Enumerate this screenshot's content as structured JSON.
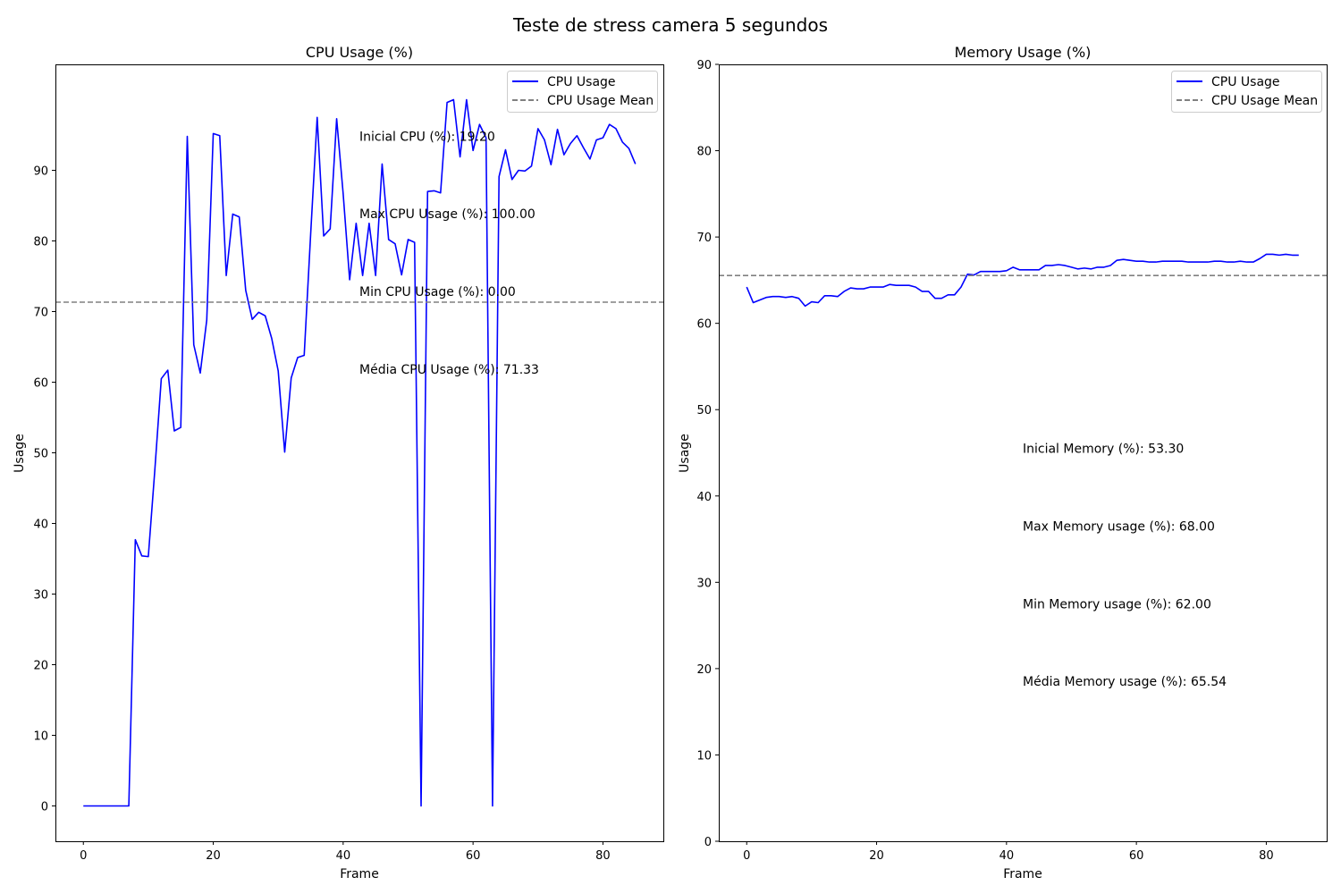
{
  "figure": {
    "title": "Teste de stress camera 5 segundos"
  },
  "chart_data": [
    {
      "type": "line",
      "title": "CPU Usage (%)",
      "xlabel": "Frame",
      "ylabel": "Usage",
      "xlim": [
        -4.3,
        89.3
      ],
      "ylim": [
        -5,
        105
      ],
      "xticks": [
        0,
        20,
        40,
        60,
        80
      ],
      "yticks": [
        0,
        10,
        20,
        30,
        40,
        50,
        60,
        70,
        80,
        90
      ],
      "grid": false,
      "legend_position": "upper right",
      "x": [
        0,
        1,
        2,
        3,
        4,
        5,
        6,
        7,
        8,
        9,
        10,
        11,
        12,
        13,
        14,
        15,
        16,
        17,
        18,
        19,
        20,
        21,
        22,
        23,
        24,
        25,
        26,
        27,
        28,
        29,
        30,
        31,
        32,
        33,
        34,
        35,
        36,
        37,
        38,
        39,
        40,
        41,
        42,
        43,
        44,
        45,
        46,
        47,
        48,
        49,
        50,
        51,
        52,
        53,
        54,
        55,
        56,
        57,
        58,
        59,
        60,
        61,
        62,
        63,
        64,
        65,
        66,
        67,
        68,
        69,
        70,
        71,
        72,
        73,
        74,
        75,
        76,
        77,
        78,
        79,
        80,
        81,
        82,
        83,
        84,
        85
      ],
      "series": [
        {
          "name": "CPU Usage",
          "color": "#0000ff",
          "style": "solid",
          "values": [
            0,
            0,
            0,
            0,
            0,
            0,
            0,
            0,
            37.7,
            35.4,
            35.3,
            47.5,
            60.5,
            61.7,
            53.1,
            53.6,
            94.8,
            65.3,
            61.3,
            68.8,
            95.2,
            94.9,
            75.1,
            83.8,
            83.4,
            73.0,
            68.9,
            69.9,
            69.4,
            66.2,
            61.6,
            50.1,
            60.6,
            63.5,
            63.8,
            81.0,
            97.5,
            80.7,
            81.7,
            97.3,
            86.7,
            74.5,
            82.5,
            75.1,
            82.5,
            75.1,
            90.9,
            80.2,
            79.6,
            75.2,
            80.2,
            79.8,
            0,
            87.0,
            87.1,
            86.8,
            99.6,
            100.0,
            91.9,
            100.0,
            92.8,
            96.5,
            94.6,
            0,
            89.1,
            92.9,
            88.7,
            90.0,
            89.9,
            90.6,
            95.9,
            94.3,
            90.8,
            95.8,
            92.2,
            93.8,
            94.9,
            93.2,
            91.6,
            94.3,
            94.6,
            96.5,
            95.9,
            94.0,
            93.1,
            90.9
          ]
        },
        {
          "name": "CPU Usage Mean",
          "color": "#808080",
          "style": "dashed",
          "constant": 71.33
        }
      ],
      "annotations": [
        {
          "text": "Inicial CPU (%): 19.20",
          "x": 42.5,
          "y": 94.2
        },
        {
          "text": "Max CPU Usage (%): 100.00",
          "x": 42.5,
          "y": 83.2
        },
        {
          "text": "Min CPU Usage (%): 0.00",
          "x": 42.5,
          "y": 72.2
        },
        {
          "text": "Média CPU Usage (%): 71.33",
          "x": 42.5,
          "y": 61.2
        }
      ]
    },
    {
      "type": "line",
      "title": "Memory Usage (%)",
      "xlabel": "Frame",
      "ylabel": "Usage",
      "xlim": [
        -4.3,
        89.3
      ],
      "ylim": [
        0,
        90
      ],
      "xticks": [
        0,
        20,
        40,
        60,
        80
      ],
      "yticks": [
        0,
        10,
        20,
        30,
        40,
        50,
        60,
        70,
        80,
        90
      ],
      "grid": false,
      "legend_position": "upper right",
      "x": [
        0,
        1,
        2,
        3,
        4,
        5,
        6,
        7,
        8,
        9,
        10,
        11,
        12,
        13,
        14,
        15,
        16,
        17,
        18,
        19,
        20,
        21,
        22,
        23,
        24,
        25,
        26,
        27,
        28,
        29,
        30,
        31,
        32,
        33,
        34,
        35,
        36,
        37,
        38,
        39,
        40,
        41,
        42,
        43,
        44,
        45,
        46,
        47,
        48,
        49,
        50,
        51,
        52,
        53,
        54,
        55,
        56,
        57,
        58,
        59,
        60,
        61,
        62,
        63,
        64,
        65,
        66,
        67,
        68,
        69,
        70,
        71,
        72,
        73,
        74,
        75,
        76,
        77,
        78,
        79,
        80,
        81,
        82,
        83,
        84,
        85
      ],
      "series": [
        {
          "name": "CPU Usage",
          "color": "#0000ff",
          "style": "solid",
          "values": [
            64.2,
            62.4,
            62.7,
            63.0,
            63.1,
            63.1,
            63.0,
            63.1,
            62.9,
            62.0,
            62.5,
            62.4,
            63.2,
            63.2,
            63.1,
            63.7,
            64.1,
            64.0,
            64.0,
            64.2,
            64.2,
            64.2,
            64.5,
            64.4,
            64.4,
            64.4,
            64.2,
            63.7,
            63.7,
            62.9,
            62.9,
            63.3,
            63.3,
            64.2,
            65.7,
            65.6,
            66.0,
            66.0,
            66.0,
            66.0,
            66.1,
            66.5,
            66.2,
            66.2,
            66.2,
            66.2,
            66.7,
            66.7,
            66.8,
            66.7,
            66.5,
            66.3,
            66.4,
            66.3,
            66.5,
            66.5,
            66.7,
            67.3,
            67.4,
            67.3,
            67.2,
            67.2,
            67.1,
            67.1,
            67.2,
            67.2,
            67.2,
            67.2,
            67.1,
            67.1,
            67.1,
            67.1,
            67.2,
            67.2,
            67.1,
            67.1,
            67.2,
            67.1,
            67.1,
            67.5,
            68.0,
            68.0,
            67.9,
            68.0,
            67.9,
            67.9
          ]
        },
        {
          "name": "CPU Usage Mean",
          "color": "#808080",
          "style": "dashed",
          "constant": 65.54
        }
      ],
      "annotations": [
        {
          "text": "Inicial Memory (%): 53.30",
          "x": 42.5,
          "y": 45.0
        },
        {
          "text": "Max Memory usage (%): 68.00",
          "x": 42.5,
          "y": 36.0
        },
        {
          "text": "Min Memory usage (%): 62.00",
          "x": 42.5,
          "y": 27.0
        },
        {
          "text": "Média Memory usage (%): 65.54",
          "x": 42.5,
          "y": 18.0
        }
      ]
    }
  ]
}
